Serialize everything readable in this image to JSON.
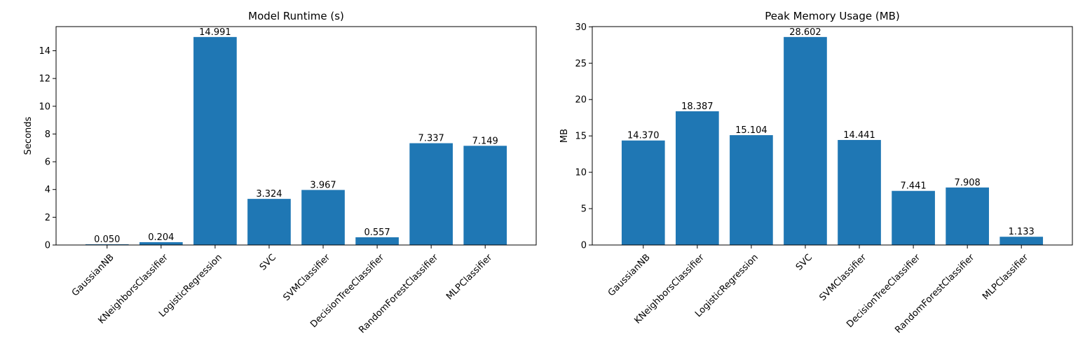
{
  "chart_data": [
    {
      "type": "bar",
      "title": "Model Runtime (s)",
      "xlabel": "",
      "ylabel": "Seconds",
      "ylim": [
        0,
        15.74
      ],
      "yticks": [
        0,
        2,
        4,
        6,
        8,
        10,
        12,
        14
      ],
      "ytick_labels": [
        "0",
        "2",
        "4",
        "6",
        "8",
        "10",
        "12",
        "14"
      ],
      "categories": [
        "GaussianNB",
        "KNeighborsClassifier",
        "LogisticRegression",
        "SVC",
        "SVMClassifier",
        "DecisionTreeClassifier",
        "RandomForestClassifier",
        "MLPClassifier"
      ],
      "values": [
        0.05,
        0.204,
        14.991,
        3.324,
        3.967,
        0.557,
        7.337,
        7.149
      ],
      "value_labels": [
        "0.050",
        "0.204",
        "14.991",
        "3.324",
        "3.967",
        "0.557",
        "7.337",
        "7.149"
      ],
      "bar_color": "#1f77b4",
      "grid": false
    },
    {
      "type": "bar",
      "title": "Peak Memory Usage (MB)",
      "xlabel": "",
      "ylabel": "MB",
      "ylim": [
        0,
        30.03
      ],
      "yticks": [
        0,
        5,
        10,
        15,
        20,
        25,
        30
      ],
      "ytick_labels": [
        "0",
        "5",
        "10",
        "15",
        "20",
        "25",
        "30"
      ],
      "categories": [
        "GaussianNB",
        "KNeighborsClassifier",
        "LogisticRegression",
        "SVC",
        "SVMClassifier",
        "DecisionTreeClassifier",
        "RandomForestClassifier",
        "MLPClassifier"
      ],
      "values": [
        14.37,
        18.387,
        15.104,
        28.602,
        14.441,
        7.441,
        7.908,
        1.133
      ],
      "value_labels": [
        "14.370",
        "18.387",
        "15.104",
        "28.602",
        "14.441",
        "7.441",
        "7.908",
        "1.133"
      ],
      "bar_color": "#1f77b4",
      "grid": false
    }
  ]
}
